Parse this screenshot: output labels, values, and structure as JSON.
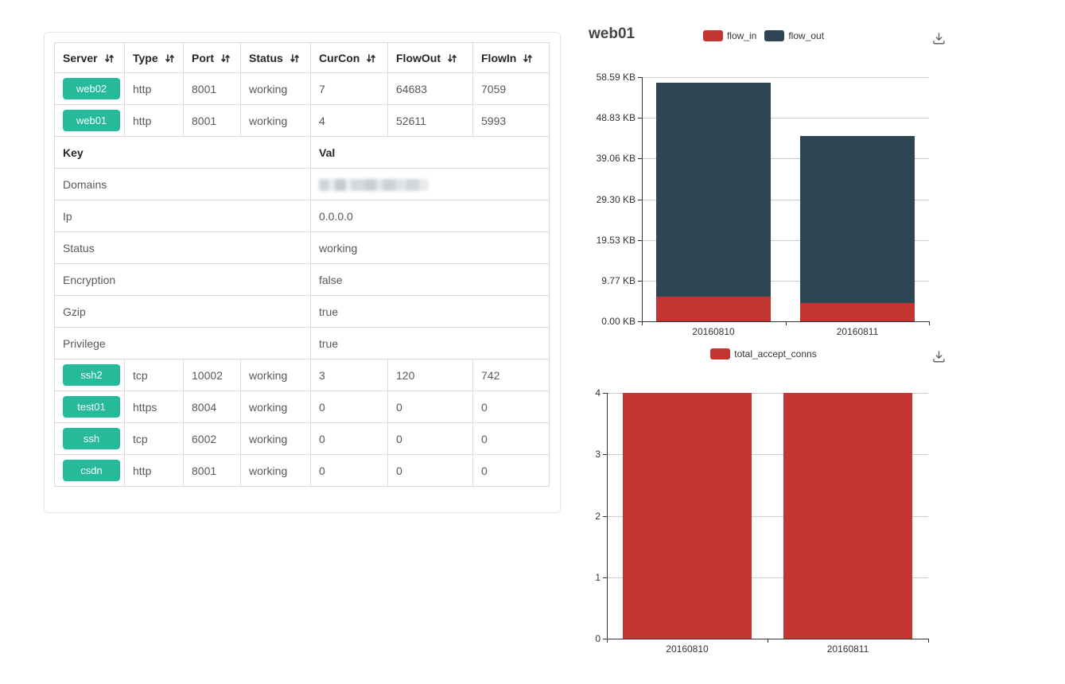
{
  "colors": {
    "green_badge": "#26b99a",
    "chart_red": "#c23531",
    "chart_dark": "#2f4554",
    "axis_label": "#333333",
    "gridline": "#cccccc",
    "table_border": "#dddddd"
  },
  "server_table": {
    "columns": [
      "Server",
      "Type",
      "Port",
      "Status",
      "CurCon",
      "FlowOut",
      "FlowIn"
    ],
    "rows_top": [
      {
        "server": "web02",
        "type": "http",
        "port": "8001",
        "status": "working",
        "curcon": "7",
        "flowout": "64683",
        "flowin": "7059"
      },
      {
        "server": "web01",
        "type": "http",
        "port": "8001",
        "status": "working",
        "curcon": "4",
        "flowout": "52611",
        "flowin": "5993"
      }
    ],
    "kv_section": {
      "key_header": "Key",
      "val_header": "Val",
      "rows": [
        {
          "key": "Domains",
          "val": "",
          "redacted": true
        },
        {
          "key": "Ip",
          "val": "0.0.0.0"
        },
        {
          "key": "Status",
          "val": "working"
        },
        {
          "key": "Encryption",
          "val": "false"
        },
        {
          "key": "Gzip",
          "val": "true"
        },
        {
          "key": "Privilege",
          "val": "true"
        }
      ]
    },
    "rows_bottom": [
      {
        "server": "ssh2",
        "type": "tcp",
        "port": "10002",
        "status": "working",
        "curcon": "3",
        "flowout": "120",
        "flowin": "742"
      },
      {
        "server": "test01",
        "type": "https",
        "port": "8004",
        "status": "working",
        "curcon": "0",
        "flowout": "0",
        "flowin": "0"
      },
      {
        "server": "ssh",
        "type": "tcp",
        "port": "6002",
        "status": "working",
        "curcon": "0",
        "flowout": "0",
        "flowin": "0"
      },
      {
        "server": "csdn",
        "type": "http",
        "port": "8001",
        "status": "working",
        "curcon": "0",
        "flowout": "0",
        "flowin": "0"
      }
    ]
  },
  "chart_data": [
    {
      "type": "bar",
      "stacked": true,
      "title": "web01",
      "categories": [
        "20160810",
        "20160811"
      ],
      "series": [
        {
          "name": "flow_in",
          "color": "#c23531",
          "values": [
            5993,
            4500
          ]
        },
        {
          "name": "flow_out",
          "color": "#2f4554",
          "values": [
            52611,
            41000
          ]
        }
      ],
      "ylim": [
        0,
        60000
      ],
      "y_tick_labels": [
        "0.00 KB",
        "9.77 KB",
        "19.53 KB",
        "29.30 KB",
        "39.06 KB",
        "48.83 KB",
        "58.59 KB"
      ],
      "legend_position": "top",
      "grid": true
    },
    {
      "type": "bar",
      "stacked": false,
      "title": "",
      "categories": [
        "20160810",
        "20160811"
      ],
      "series": [
        {
          "name": "total_accept_conns",
          "color": "#c23531",
          "values": [
            4,
            4
          ]
        }
      ],
      "ylim": [
        0,
        4
      ],
      "y_tick_labels": [
        "0",
        "1",
        "2",
        "3",
        "4"
      ],
      "legend_position": "top",
      "grid": true
    }
  ]
}
